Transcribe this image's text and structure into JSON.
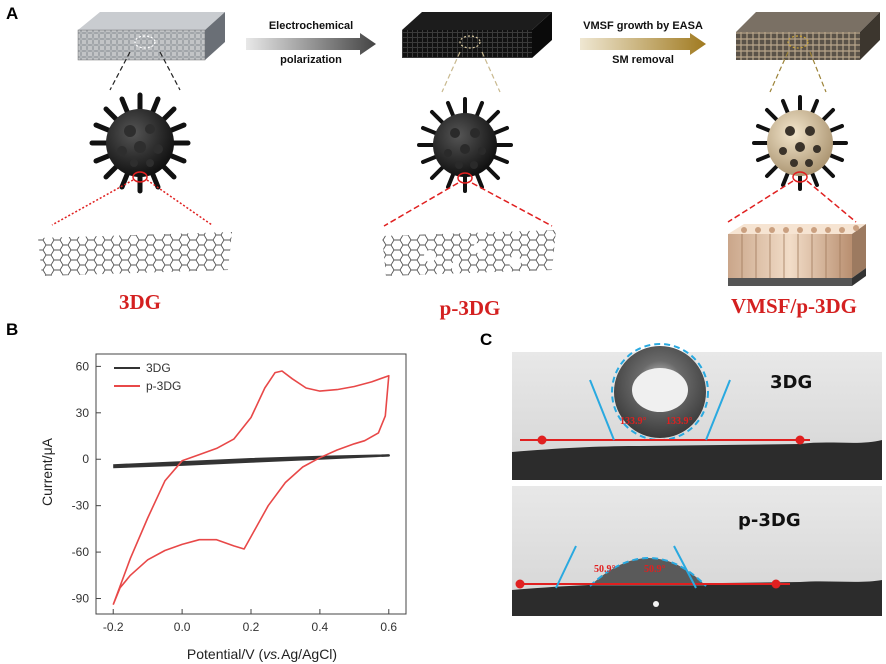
{
  "panels": {
    "A": "A",
    "B": "B",
    "C": "C"
  },
  "schematic": {
    "arrow1": {
      "line1": "Electrochemical",
      "line2": "polarization"
    },
    "arrow2": {
      "line1": "VMSF growth by EASA",
      "line2": "SM removal"
    },
    "labels": [
      "3DG",
      "p-3DG",
      "VMSF/p-3DG"
    ]
  },
  "chart_data": {
    "type": "line",
    "xlabel_main": "Potential/V (",
    "xlabel_italic": "vs.",
    "xlabel_end": "Ag/AgCl)",
    "ylabel": "Current/μA",
    "xlim": [
      -0.25,
      0.65
    ],
    "ylim": [
      -100,
      68
    ],
    "xticks": [
      -0.2,
      0.0,
      0.2,
      0.4,
      0.6
    ],
    "xtick_labels": [
      "-0.2",
      "0.0",
      "0.2",
      "0.4",
      "0.6"
    ],
    "yticks": [
      -90,
      -60,
      -30,
      0,
      30,
      60
    ],
    "ytick_labels": [
      "-90",
      "-60",
      "-30",
      "0",
      "30",
      "60"
    ],
    "legend_position": "top-left",
    "series": [
      {
        "name": "3DG",
        "color": "#333333",
        "forward": [
          [
            -0.2,
            -4
          ],
          [
            0.0,
            -2
          ],
          [
            0.2,
            0
          ],
          [
            0.4,
            1.5
          ],
          [
            0.6,
            2.5
          ]
        ],
        "reverse": [
          [
            0.6,
            2.5
          ],
          [
            0.4,
            0.5
          ],
          [
            0.2,
            -1.5
          ],
          [
            0.0,
            -3.5
          ],
          [
            -0.2,
            -5
          ]
        ]
      },
      {
        "name": "p-3DG",
        "color": "#e84848",
        "forward": [
          [
            -0.2,
            -94
          ],
          [
            -0.18,
            -82
          ],
          [
            -0.15,
            -64
          ],
          [
            -0.1,
            -38
          ],
          [
            -0.05,
            -14
          ],
          [
            0.0,
            -1
          ],
          [
            0.05,
            3
          ],
          [
            0.1,
            7
          ],
          [
            0.15,
            13
          ],
          [
            0.2,
            27
          ],
          [
            0.24,
            46
          ],
          [
            0.27,
            56
          ],
          [
            0.29,
            57
          ],
          [
            0.32,
            52
          ],
          [
            0.36,
            46
          ],
          [
            0.4,
            44
          ],
          [
            0.45,
            45
          ],
          [
            0.5,
            47
          ],
          [
            0.55,
            50
          ],
          [
            0.6,
            54
          ]
        ],
        "reverse": [
          [
            0.6,
            54
          ],
          [
            0.59,
            28
          ],
          [
            0.57,
            17
          ],
          [
            0.53,
            12
          ],
          [
            0.5,
            10
          ],
          [
            0.45,
            6
          ],
          [
            0.4,
            1
          ],
          [
            0.35,
            -5
          ],
          [
            0.3,
            -15
          ],
          [
            0.25,
            -30
          ],
          [
            0.2,
            -50
          ],
          [
            0.18,
            -58
          ],
          [
            0.15,
            -56
          ],
          [
            0.1,
            -52
          ],
          [
            0.05,
            -52
          ],
          [
            0.0,
            -55
          ],
          [
            -0.05,
            -59
          ],
          [
            -0.1,
            -65
          ],
          [
            -0.15,
            -75
          ],
          [
            -0.18,
            -83
          ],
          [
            -0.2,
            -94
          ]
        ]
      }
    ]
  },
  "photos": {
    "top": {
      "label": "3DG",
      "angle_left": "133.9°",
      "angle_right": "133.9°"
    },
    "bottom": {
      "label": "p-3DG",
      "angle_left": "50.9°",
      "angle_right": "50.9°"
    }
  }
}
